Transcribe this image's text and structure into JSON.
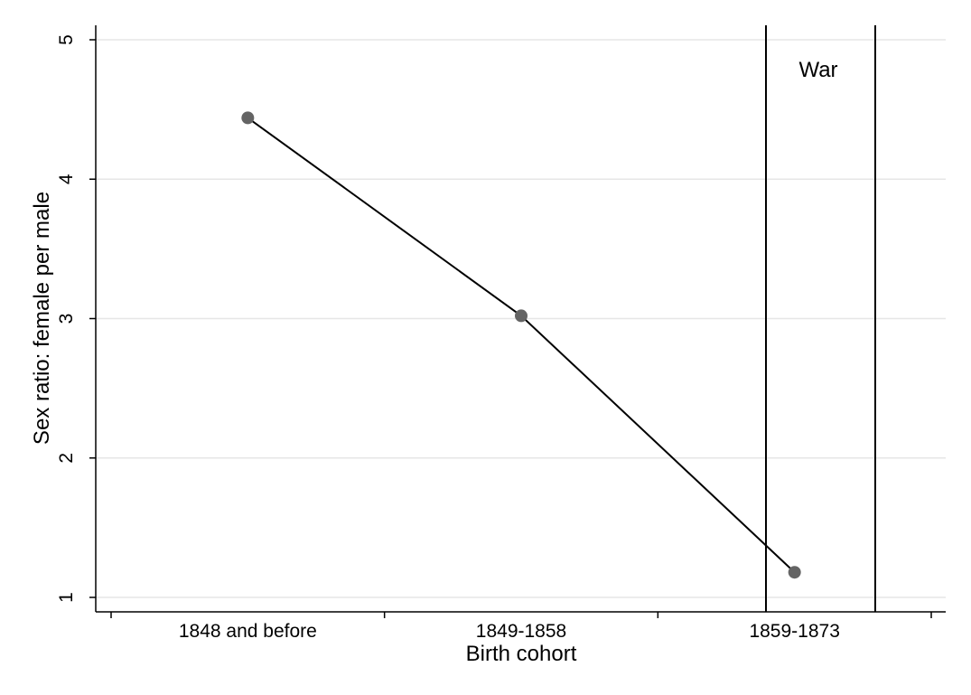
{
  "chart_data": {
    "type": "line",
    "categories": [
      "1848 and before",
      "1849-1858",
      "1859-1873"
    ],
    "series": [
      {
        "values": [
          4.44,
          3.02,
          1.18
        ],
        "color": "#000000",
        "marker_color": "#646464"
      }
    ],
    "xlabel": "Birth cohort",
    "ylabel": "Sex ratio: female per male",
    "ylim": [
      1,
      5
    ],
    "yticks": [
      "1",
      "2",
      "3",
      "4",
      "5"
    ],
    "grid": true,
    "gridline_color": "#e6e6e6",
    "annotations": [
      {
        "text": "War",
        "shaded_span": "vertical band from within 1859-1873 cohort to beyond it, bounded by two black vertical lines"
      }
    ]
  }
}
